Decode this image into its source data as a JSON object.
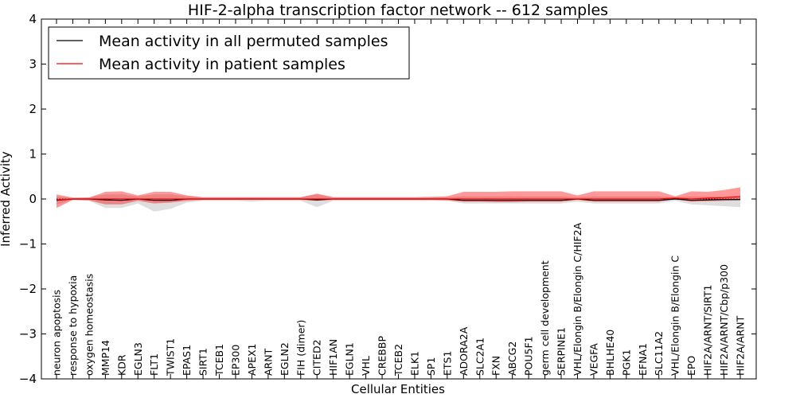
{
  "chart_data": {
    "type": "line",
    "title": "HIF-2-alpha transcription factor network -- 612 samples",
    "xlabel": "Cellular Entities",
    "ylabel": "Inferred Activity",
    "ylim": [
      -4,
      4
    ],
    "yticks": [
      -4,
      -3,
      -2,
      -1,
      0,
      1,
      2,
      3,
      4
    ],
    "ytick_labels": [
      "−4",
      "−3",
      "−2",
      "−1",
      "0",
      "1",
      "2",
      "3",
      "4"
    ],
    "grid": false,
    "legend_position": "top-left",
    "categories": [
      "neuron apoptosis",
      "response to hypoxia",
      "oxygen homeostasis",
      "MMP14",
      "KDR",
      "EGLN3",
      "FLT1",
      "TWIST1",
      "EPAS1",
      "SIRT1",
      "TCEB1",
      "EP300",
      "APEX1",
      "ARNT",
      "EGLN2",
      "FIH (dimer)",
      "CITED2",
      "HIF1AN",
      "EGLN1",
      "VHL",
      "CREBBP",
      "TCEB2",
      "ELK1",
      "SP1",
      "ETS1",
      "ADORA2A",
      "SLC2A1",
      "FXN",
      "ABCG2",
      "POU5F1",
      "germ cell development",
      "SERPINE1",
      "VHL/Elongin B/Elongin C/HIF2A",
      "VEGFA",
      "BHLHE40",
      "PGK1",
      "EFNA1",
      "SLC11A2",
      "VHL/Elongin B/Elongin C",
      "EPO",
      "HIF2A/ARNT/SIRT1",
      "HIF2A/ARNT/Cbp/p300",
      "HIF2A/ARNT"
    ],
    "series": [
      {
        "name": "Mean activity in all permuted samples",
        "color": "#000000",
        "values": [
          -0.03,
          0,
          0,
          -0.02,
          -0.03,
          0,
          -0.03,
          -0.03,
          0,
          0,
          0,
          0,
          0,
          0,
          0,
          0,
          -0.02,
          0,
          0,
          0,
          0,
          0,
          0,
          0,
          0,
          -0.03,
          -0.03,
          -0.03,
          -0.03,
          -0.03,
          -0.03,
          -0.03,
          0,
          -0.03,
          -0.03,
          -0.03,
          -0.03,
          -0.03,
          0,
          -0.03,
          -0.02,
          -0.01,
          -0.01
        ],
        "lower": [
          -0.12,
          -0.02,
          -0.04,
          -0.2,
          -0.2,
          -0.1,
          -0.28,
          -0.22,
          -0.08,
          -0.04,
          -0.04,
          -0.04,
          -0.06,
          -0.04,
          -0.04,
          -0.04,
          -0.18,
          -0.04,
          -0.04,
          -0.04,
          -0.04,
          -0.04,
          -0.04,
          -0.04,
          -0.04,
          -0.1,
          -0.1,
          -0.1,
          -0.1,
          -0.1,
          -0.1,
          -0.1,
          -0.06,
          -0.1,
          -0.1,
          -0.1,
          -0.1,
          -0.1,
          -0.04,
          -0.12,
          -0.14,
          -0.16,
          -0.18
        ],
        "upper": [
          0.06,
          0.02,
          0.04,
          0.1,
          0.1,
          0.06,
          0.1,
          0.1,
          0.06,
          0.04,
          0.04,
          0.04,
          0.04,
          0.04,
          0.04,
          0.04,
          0.1,
          0.04,
          0.04,
          0.04,
          0.04,
          0.04,
          0.04,
          0.04,
          0.04,
          0.06,
          0.06,
          0.06,
          0.06,
          0.06,
          0.06,
          0.06,
          0.04,
          0.06,
          0.06,
          0.06,
          0.06,
          0.06,
          0.04,
          0.06,
          0.06,
          0.06,
          0.08
        ]
      },
      {
        "name": "Mean activity in patient samples",
        "color": "#ff0000",
        "values": [
          -0.02,
          0,
          0,
          0,
          0,
          0,
          0,
          0,
          0,
          0,
          0,
          0,
          0,
          0,
          0,
          0,
          0,
          0,
          0,
          0,
          0,
          0,
          0,
          0,
          0,
          0,
          0,
          0,
          0,
          0,
          0,
          0,
          0,
          0,
          0,
          0,
          0,
          0,
          0.02,
          0,
          0.02,
          0.03,
          0.05
        ],
        "lower": [
          -0.2,
          -0.02,
          -0.03,
          -0.12,
          -0.12,
          -0.04,
          -0.1,
          -0.08,
          -0.04,
          -0.02,
          -0.02,
          -0.02,
          -0.02,
          -0.02,
          -0.02,
          -0.02,
          -0.04,
          -0.02,
          -0.02,
          -0.02,
          -0.02,
          -0.02,
          -0.02,
          -0.02,
          -0.03,
          -0.06,
          -0.06,
          -0.07,
          -0.07,
          -0.06,
          -0.06,
          -0.06,
          -0.02,
          -0.06,
          -0.06,
          -0.06,
          -0.06,
          -0.06,
          0,
          -0.06,
          -0.05,
          -0.04,
          -0.03
        ],
        "upper": [
          0.1,
          0.03,
          0.03,
          0.16,
          0.17,
          0.08,
          0.16,
          0.16,
          0.08,
          0.04,
          0.04,
          0.04,
          0.04,
          0.04,
          0.04,
          0.04,
          0.12,
          0.04,
          0.04,
          0.04,
          0.04,
          0.04,
          0.04,
          0.05,
          0.06,
          0.16,
          0.16,
          0.16,
          0.17,
          0.17,
          0.17,
          0.17,
          0.08,
          0.17,
          0.17,
          0.17,
          0.17,
          0.17,
          0.06,
          0.17,
          0.16,
          0.2,
          0.26
        ]
      }
    ]
  }
}
